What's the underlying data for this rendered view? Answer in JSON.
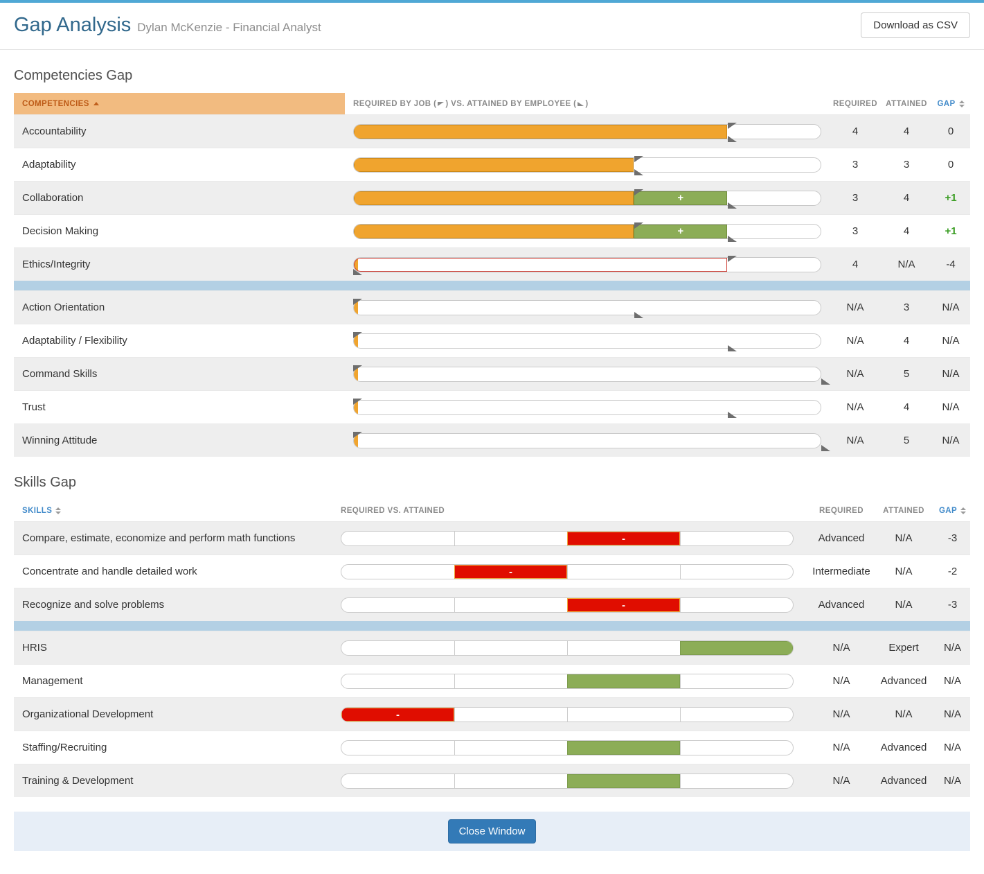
{
  "header": {
    "title": "Gap Analysis",
    "subtitle": "Dylan McKenzie - Financial Analyst",
    "download_csv_label": "Download as CSV"
  },
  "colors": {
    "top_strip": "#4fa8d5",
    "title_blue": "#31688c",
    "header_orange_bg": "#f2bb80",
    "header_orange_text": "#bd5a16",
    "link_blue": "#428bca",
    "bar_orange": "#f0a42e",
    "bar_green": "#8cad57",
    "bar_red": "#e00d00",
    "red_outline": "#cf3f36",
    "stripe_gray": "#eeeeee",
    "separator_blue": "#b3d0e4",
    "footer_band": "#e7eef7",
    "close_button": "#337ab7",
    "gap_positive_green": "#3a9d23"
  },
  "competencies_section": {
    "heading": "Competencies Gap",
    "table_header": {
      "name_col": "COMPETENCIES",
      "bar_col_pre": "REQUIRED BY JOB (",
      "bar_col_mid": ") VS. ATTAINED BY EMPLOYEE (",
      "bar_col_post": ")",
      "required_col": "REQUIRED",
      "attained_col": "ATTAINED",
      "gap_col": "GAP"
    },
    "scale_max": 5,
    "rows": [
      {
        "label": "Accountability",
        "required": "4",
        "attained": "4",
        "gap": "0",
        "gap_positive": false,
        "bar": {
          "orange_pct": 80,
          "req_flag": 80,
          "att_flag": 80
        }
      },
      {
        "label": "Adaptability",
        "required": "3",
        "attained": "3",
        "gap": "0",
        "gap_positive": false,
        "bar": {
          "orange_pct": 60,
          "req_flag": 60,
          "att_flag": 60
        }
      },
      {
        "label": "Collaboration",
        "required": "3",
        "attained": "4",
        "gap": "+1",
        "gap_positive": true,
        "bar": {
          "orange_pct": 60,
          "green_start": 60,
          "green_end": 80,
          "green_label": "+",
          "req_flag": 60,
          "att_flag": 80
        }
      },
      {
        "label": "Decision Making",
        "required": "3",
        "attained": "4",
        "gap": "+1",
        "gap_positive": true,
        "bar": {
          "orange_pct": 60,
          "green_start": 60,
          "green_end": 80,
          "green_label": "+",
          "req_flag": 60,
          "att_flag": 80
        }
      },
      {
        "label": "Ethics/Integrity",
        "required": "4",
        "attained": "N/A",
        "gap": "-4",
        "gap_positive": false,
        "bar": {
          "orange_pct": 0,
          "sliver": true,
          "red_start": 0,
          "red_end": 80,
          "req_flag": 80,
          "att_flag": 0
        }
      },
      {
        "separator": true
      },
      {
        "label": "Action Orientation",
        "required": "N/A",
        "attained": "3",
        "gap": "N/A",
        "gap_positive": false,
        "bar": {
          "orange_pct": 0,
          "sliver": true,
          "req_flag": 0,
          "att_flag": 60
        }
      },
      {
        "label": "Adaptability / Flexibility",
        "required": "N/A",
        "attained": "4",
        "gap": "N/A",
        "gap_positive": false,
        "bar": {
          "orange_pct": 0,
          "sliver": true,
          "req_flag": 0,
          "att_flag": 80
        }
      },
      {
        "label": "Command Skills",
        "required": "N/A",
        "attained": "5",
        "gap": "N/A",
        "gap_positive": false,
        "bar": {
          "orange_pct": 0,
          "sliver": true,
          "req_flag": 0,
          "att_flag": 100
        }
      },
      {
        "label": "Trust",
        "required": "N/A",
        "attained": "4",
        "gap": "N/A",
        "gap_positive": false,
        "bar": {
          "orange_pct": 0,
          "sliver": true,
          "req_flag": 0,
          "att_flag": 80
        }
      },
      {
        "label": "Winning Attitude",
        "required": "N/A",
        "attained": "5",
        "gap": "N/A",
        "gap_positive": false,
        "bar": {
          "orange_pct": 0,
          "sliver": true,
          "req_flag": 0,
          "att_flag": 100
        }
      }
    ]
  },
  "skills_section": {
    "heading": "Skills Gap",
    "table_header": {
      "name_col": "SKILLS",
      "bar_col": "REQUIRED VS. ATTAINED",
      "required_col": "REQUIRED",
      "attained_col": "ATTAINED",
      "gap_col": "GAP"
    },
    "scale_cells": 4,
    "rows": [
      {
        "label": "Compare, estimate, economize and perform math functions",
        "required": "Advanced",
        "attained": "N/A",
        "gap": "-3",
        "cell": 3,
        "color": "red",
        "cell_label": "-"
      },
      {
        "label": "Concentrate and handle detailed work",
        "required": "Intermediate",
        "attained": "N/A",
        "gap": "-2",
        "cell": 2,
        "color": "red",
        "cell_label": "-"
      },
      {
        "label": "Recognize and solve problems",
        "required": "Advanced",
        "attained": "N/A",
        "gap": "-3",
        "cell": 3,
        "color": "red",
        "cell_label": "-"
      },
      {
        "separator": true
      },
      {
        "label": "HRIS",
        "required": "N/A",
        "attained": "Expert",
        "gap": "N/A",
        "cell": 4,
        "color": "green",
        "cell_label": ""
      },
      {
        "label": "Management",
        "required": "N/A",
        "attained": "Advanced",
        "gap": "N/A",
        "cell": 3,
        "color": "green",
        "cell_label": ""
      },
      {
        "label": "Organizational Development",
        "required": "N/A",
        "attained": "N/A",
        "gap": "N/A",
        "cell": 1,
        "color": "red",
        "cell_label": "-"
      },
      {
        "label": "Staffing/Recruiting",
        "required": "N/A",
        "attained": "Advanced",
        "gap": "N/A",
        "cell": 3,
        "color": "green",
        "cell_label": ""
      },
      {
        "label": "Training & Development",
        "required": "N/A",
        "attained": "Advanced",
        "gap": "N/A",
        "cell": 3,
        "color": "green",
        "cell_label": ""
      }
    ]
  },
  "footer": {
    "close_label": "Close Window"
  }
}
